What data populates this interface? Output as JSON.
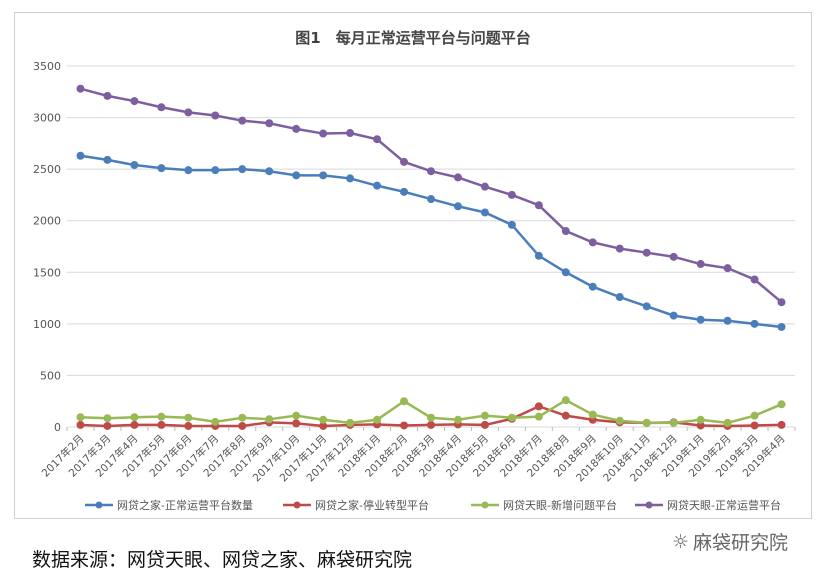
{
  "chart_data": {
    "type": "line",
    "title": "图1　每月正常运营平台与问题平台",
    "xlabel": "",
    "ylabel": "",
    "ylim": [
      0,
      3500
    ],
    "yticks": [
      0,
      500,
      1000,
      1500,
      2000,
      2500,
      3000,
      3500
    ],
    "grid": true,
    "legend_position": "bottom",
    "categories": [
      "2017年2月",
      "2017年3月",
      "2017年4月",
      "2017年5月",
      "2017年6月",
      "2017年7月",
      "2017年8月",
      "2017年9月",
      "2017年10月",
      "2017年11月",
      "2017年12月",
      "2018年1月",
      "2018年2月",
      "2018年3月",
      "2018年4月",
      "2018年5月",
      "2018年6月",
      "2018年7月",
      "2018年8月",
      "2018年9月",
      "2018年10月",
      "2018年11月",
      "2018年12月",
      "2019年1月",
      "2019年2月",
      "2019年3月",
      "2019年4月"
    ],
    "series": [
      {
        "name": "网贷之家-正常运营平台数量",
        "color": "#4a7ebb",
        "values": [
          2630,
          2590,
          2540,
          2510,
          2490,
          2490,
          2500,
          2480,
          2440,
          2440,
          2410,
          2340,
          2280,
          2210,
          2140,
          2080,
          1960,
          1660,
          1500,
          1360,
          1260,
          1170,
          1080,
          1040,
          1030,
          1000,
          970
        ]
      },
      {
        "name": "网贷之家-停业转型平台",
        "color": "#be4b48",
        "values": [
          20,
          10,
          20,
          20,
          10,
          10,
          10,
          45,
          35,
          10,
          20,
          25,
          15,
          20,
          25,
          20,
          80,
          200,
          110,
          70,
          45,
          40,
          45,
          15,
          10,
          15,
          20
        ]
      },
      {
        "name": "网贷天眼-新增问题平台",
        "color": "#98b954",
        "values": [
          95,
          85,
          95,
          100,
          90,
          50,
          90,
          75,
          110,
          70,
          40,
          70,
          250,
          90,
          70,
          110,
          90,
          100,
          260,
          120,
          60,
          40,
          40,
          70,
          40,
          110,
          220
        ]
      },
      {
        "name": "网贷天眼-正常运营平台",
        "color": "#7d5fa0",
        "values": [
          3280,
          3210,
          3160,
          3100,
          3050,
          3020,
          2970,
          2945,
          2890,
          2845,
          2850,
          2790,
          2570,
          2480,
          2420,
          2330,
          2250,
          2150,
          1900,
          1790,
          1730,
          1690,
          1650,
          1580,
          1540,
          1430,
          1210
        ]
      }
    ]
  },
  "source": "数据来源：网贷天眼、网贷之家、麻袋研究院",
  "watermark": "麻袋研究院",
  "watermark_icon": "wechat-icon"
}
